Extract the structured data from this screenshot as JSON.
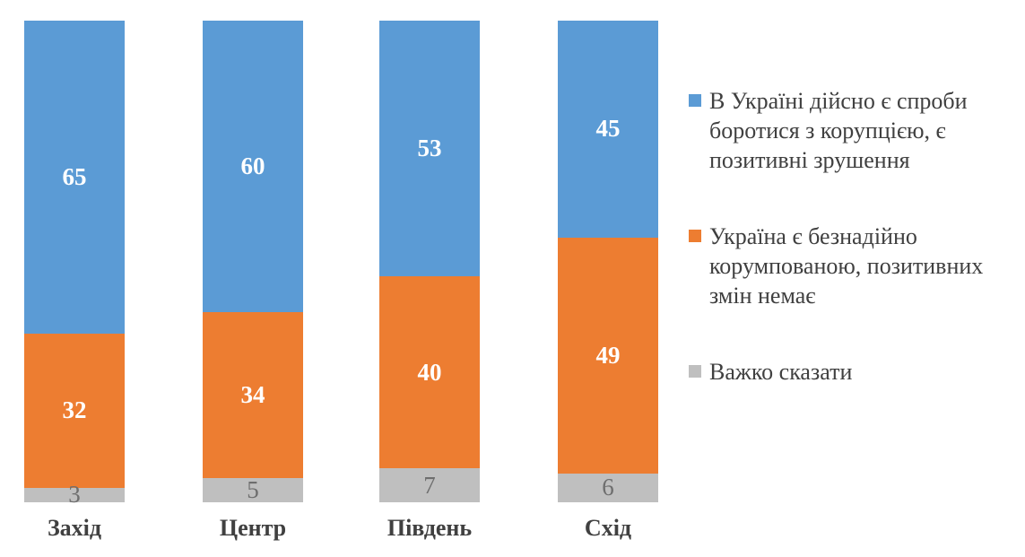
{
  "chart_data": {
    "type": "bar",
    "subtype": "stacked-column-percent",
    "title": "",
    "xlabel": "",
    "ylabel": "",
    "ylim": [
      0,
      100
    ],
    "grid": false,
    "axes_visible": false,
    "legend_position": "right",
    "data_labels": true,
    "categories": [
      "Захід",
      "Центр",
      "Південь",
      "Схід"
    ],
    "series": [
      {
        "name": "В Україні дійсно є спроби боротися з корупцією, є позитивні зрушення",
        "color": "#5B9BD5",
        "label_color": "#FFFFFF",
        "label_bold": true,
        "values": [
          65,
          60,
          53,
          45
        ]
      },
      {
        "name": "Україна є безнадійно корумпованою, позитивних змін немає",
        "color": "#ED7D31",
        "label_color": "#FFFFFF",
        "label_bold": true,
        "values": [
          32,
          34,
          40,
          49
        ]
      },
      {
        "name": "Важко сказати",
        "color": "#BFBFBF",
        "label_color": "#6E6E6E",
        "label_bold": false,
        "values": [
          3,
          5,
          7,
          6
        ]
      }
    ],
    "category_label_color": "#404040",
    "legend_text_color": "#404040",
    "background_color": "#FFFFFF"
  }
}
